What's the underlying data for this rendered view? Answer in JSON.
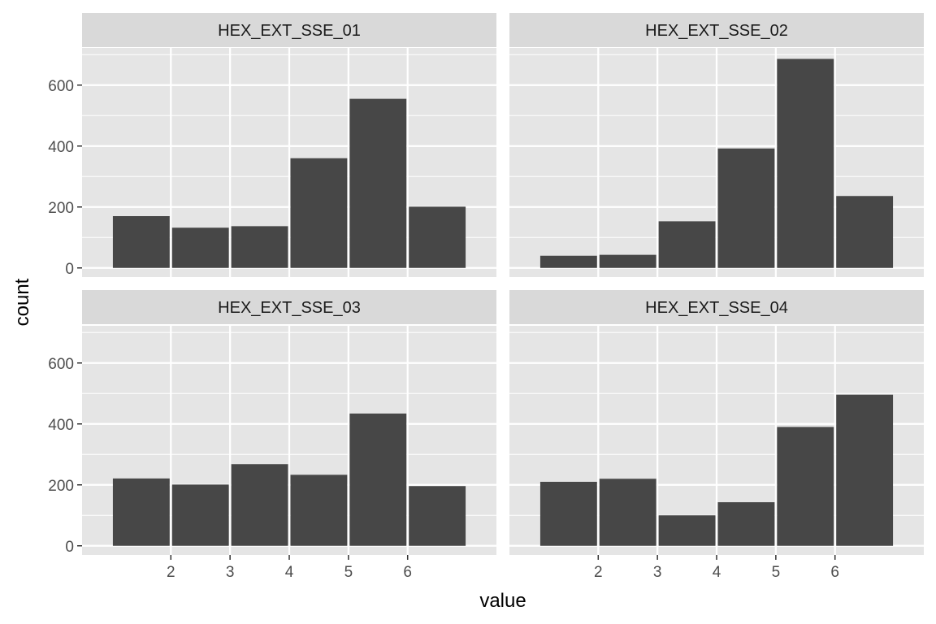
{
  "chart_data": {
    "type": "bar",
    "xlabel": "value",
    "ylabel": "count",
    "xlim": [
      0.5,
      7.5
    ],
    "ylim": [
      -30,
      722
    ],
    "x_ticks": [
      2,
      3,
      4,
      5,
      6
    ],
    "y_ticks": [
      0,
      200,
      400,
      600
    ],
    "bin_centers": [
      1.5,
      2.5,
      3.5,
      4.5,
      5.5,
      6.5
    ],
    "bin_width": 1,
    "grid": true,
    "colors": {
      "bar": "#474747",
      "panel_bg": "#e5e5e5",
      "strip_bg": "#d9d9d9",
      "grid": "#ffffff"
    },
    "panels": [
      {
        "name": "HEX_EXT_SSE_01",
        "values": [
          170,
          132,
          137,
          360,
          555,
          201
        ]
      },
      {
        "name": "HEX_EXT_SSE_02",
        "values": [
          40,
          43,
          153,
          392,
          686,
          236
        ]
      },
      {
        "name": "HEX_EXT_SSE_03",
        "values": [
          221,
          201,
          268,
          233,
          434,
          196
        ]
      },
      {
        "name": "HEX_EXT_SSE_04",
        "values": [
          210,
          220,
          100,
          143,
          390,
          496
        ]
      }
    ]
  }
}
